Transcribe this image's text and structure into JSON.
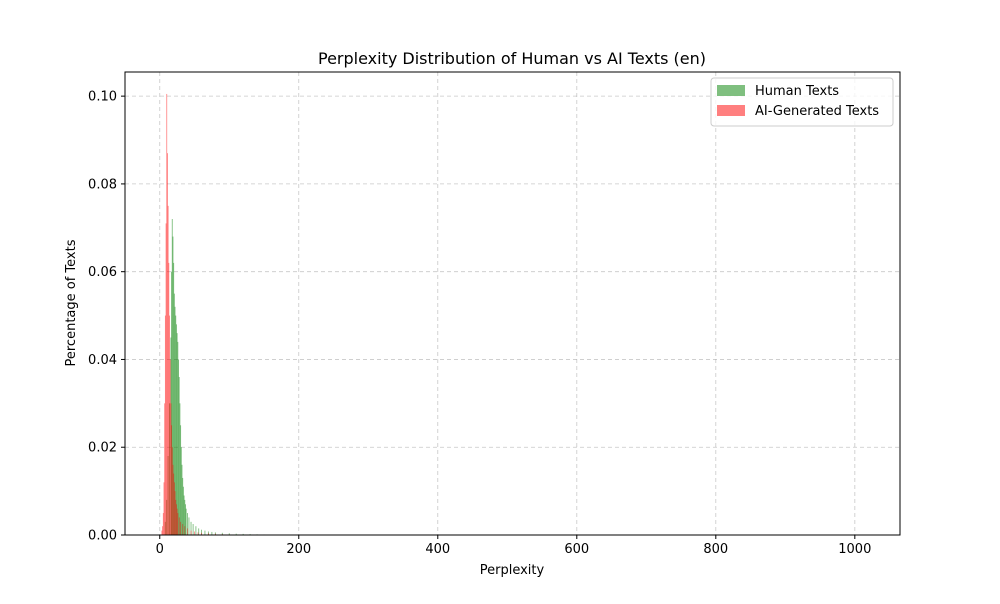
{
  "chart_data": {
    "type": "histogram",
    "title": "Perplexity Distribution of Human vs AI Texts (en)",
    "xlabel": "Perplexity",
    "ylabel": "Percentage of Texts",
    "xlim": [
      -50,
      1065
    ],
    "ylim": [
      0,
      0.1055
    ],
    "x_ticks": [
      0,
      200,
      400,
      600,
      800,
      1000
    ],
    "x_tick_labels": [
      "0",
      "200",
      "400",
      "600",
      "800",
      "1000"
    ],
    "y_ticks": [
      0.0,
      0.02,
      0.04,
      0.06,
      0.08,
      0.1
    ],
    "y_tick_labels": [
      "0.00",
      "0.02",
      "0.04",
      "0.06",
      "0.08",
      "0.10"
    ],
    "grid": true,
    "legend_position": "upper right",
    "series": [
      {
        "name": "Human Texts",
        "color": "#008000",
        "opacity": 0.5,
        "bin_width": 1.3,
        "bins": [
          [
            8,
            0.003
          ],
          [
            10,
            0.008
          ],
          [
            12,
            0.018
          ],
          [
            14,
            0.03
          ],
          [
            16,
            0.045
          ],
          [
            17,
            0.06
          ],
          [
            18,
            0.072
          ],
          [
            19,
            0.068
          ],
          [
            20,
            0.062
          ],
          [
            21,
            0.055
          ],
          [
            22,
            0.052
          ],
          [
            23,
            0.05
          ],
          [
            24,
            0.048
          ],
          [
            25,
            0.046
          ],
          [
            26,
            0.044
          ],
          [
            27,
            0.04
          ],
          [
            28,
            0.036
          ],
          [
            29,
            0.03
          ],
          [
            30,
            0.025
          ],
          [
            31,
            0.02
          ],
          [
            32,
            0.016
          ],
          [
            33,
            0.013
          ],
          [
            34,
            0.011
          ],
          [
            35,
            0.009
          ],
          [
            36,
            0.008
          ],
          [
            37,
            0.007
          ],
          [
            38,
            0.006
          ],
          [
            40,
            0.005
          ],
          [
            42,
            0.004
          ],
          [
            45,
            0.003
          ],
          [
            48,
            0.0025
          ],
          [
            52,
            0.002
          ],
          [
            56,
            0.0015
          ],
          [
            60,
            0.0012
          ],
          [
            65,
            0.001
          ],
          [
            70,
            0.0008
          ],
          [
            75,
            0.0007
          ],
          [
            80,
            0.0006
          ],
          [
            90,
            0.0005
          ],
          [
            100,
            0.0004
          ],
          [
            110,
            0.0003
          ],
          [
            120,
            0.00025
          ],
          [
            130,
            0.0002
          ],
          [
            140,
            0.00015
          ],
          [
            150,
            0.00012
          ],
          [
            160,
            0.0001
          ],
          [
            180,
            8e-05
          ],
          [
            200,
            6e-05
          ]
        ]
      },
      {
        "name": "AI-Generated Texts",
        "color": "#ff0000",
        "opacity": 0.5,
        "bin_width": 1.0,
        "bins": [
          [
            3,
            0.001
          ],
          [
            4,
            0.002
          ],
          [
            5,
            0.005
          ],
          [
            6,
            0.012
          ],
          [
            7,
            0.03
          ],
          [
            8,
            0.05
          ],
          [
            9,
            0.071
          ],
          [
            10,
            0.1005
          ],
          [
            11,
            0.087
          ],
          [
            12,
            0.075
          ],
          [
            13,
            0.062
          ],
          [
            14,
            0.05
          ],
          [
            15,
            0.04
          ],
          [
            16,
            0.03
          ],
          [
            17,
            0.025
          ],
          [
            18,
            0.02
          ],
          [
            19,
            0.016
          ],
          [
            20,
            0.014
          ],
          [
            21,
            0.012
          ],
          [
            22,
            0.01
          ],
          [
            23,
            0.008
          ],
          [
            24,
            0.007
          ],
          [
            25,
            0.006
          ],
          [
            26,
            0.005
          ],
          [
            28,
            0.004
          ],
          [
            30,
            0.003
          ],
          [
            33,
            0.0025
          ],
          [
            36,
            0.002
          ],
          [
            40,
            0.0015
          ],
          [
            45,
            0.001
          ],
          [
            50,
            0.0008
          ],
          [
            55,
            0.0006
          ],
          [
            60,
            0.0005
          ],
          [
            70,
            0.0004
          ],
          [
            80,
            0.0003
          ],
          [
            90,
            0.0002
          ],
          [
            100,
            0.00015
          ]
        ]
      }
    ]
  }
}
